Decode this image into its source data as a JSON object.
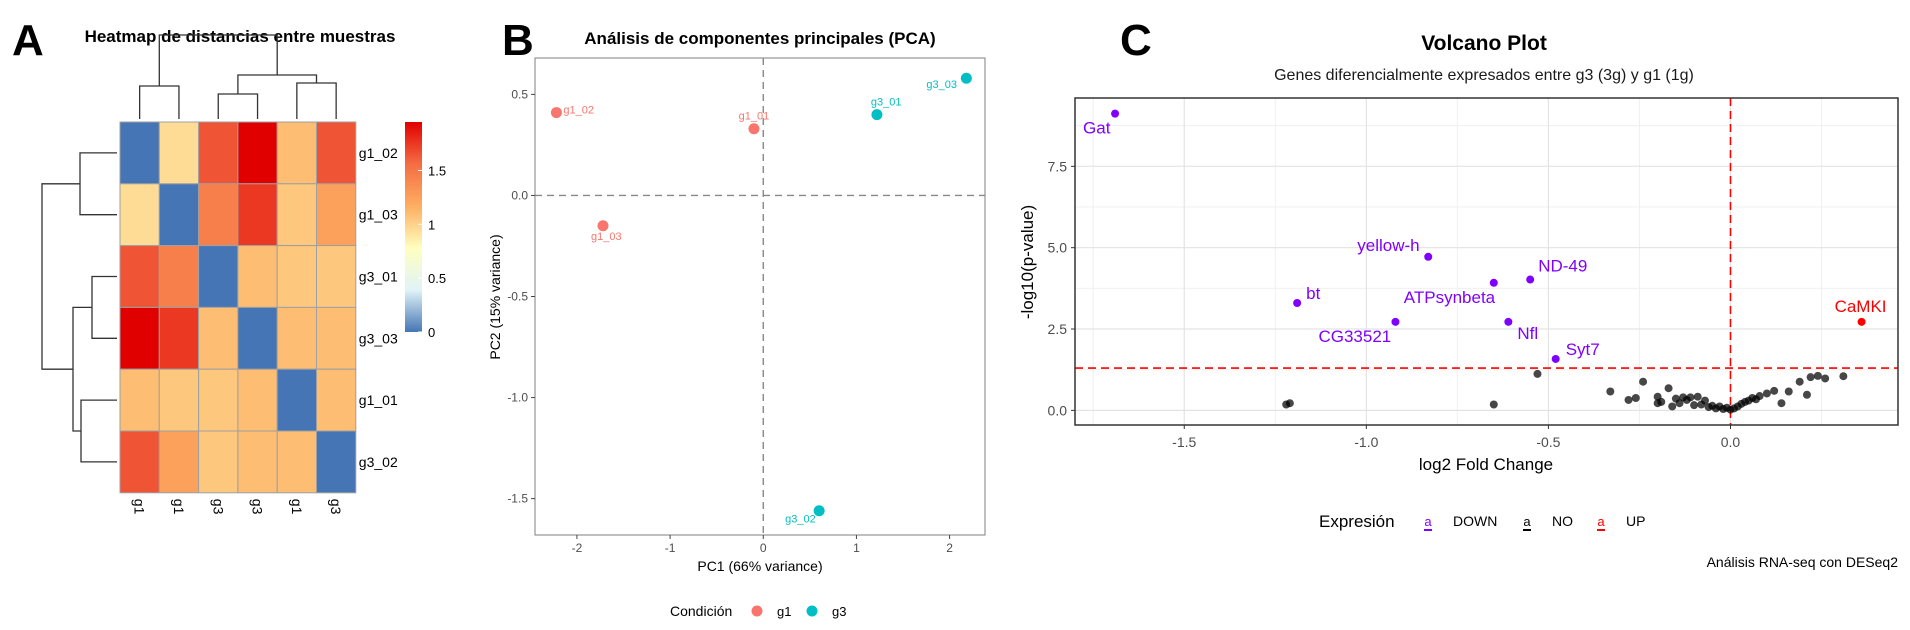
{
  "panel_letters": [
    "A",
    "B",
    "C"
  ],
  "chart_data": [
    {
      "type": "heatmap",
      "title": "Heatmap de distancias entre muestras",
      "row_labels": [
        "g1_02",
        "g1_03",
        "g3_01",
        "g3_03",
        "g1_01",
        "g3_02"
      ],
      "col_labels": [
        "g1",
        "g1",
        "g3",
        "g3",
        "g1",
        "g3"
      ],
      "values": [
        [
          0.0,
          0.95,
          1.65,
          1.95,
          1.1,
          1.65
        ],
        [
          0.95,
          0.0,
          1.45,
          1.75,
          1.05,
          1.25
        ],
        [
          1.65,
          1.45,
          0.0,
          1.1,
          1.05,
          1.05
        ],
        [
          1.95,
          1.75,
          1.1,
          0.0,
          1.1,
          1.1
        ],
        [
          1.1,
          1.05,
          1.05,
          1.1,
          0.0,
          1.1
        ],
        [
          1.65,
          1.25,
          1.05,
          1.1,
          1.1,
          0.0
        ]
      ],
      "color_scale": {
        "min": 0,
        "max": 1.95,
        "stops": [
          "#4575b4",
          "#e0f3f8",
          "#ffffbf",
          "#fdae61",
          "#f46d43",
          "#e00000"
        ],
        "ticks": [
          0,
          0.5,
          1,
          1.5
        ],
        "tick_labels": [
          "0",
          "0.5",
          "1",
          "1.5"
        ]
      },
      "legend_position": "right"
    },
    {
      "type": "scatter",
      "title": "Análisis de componentes principales (PCA)",
      "xlabel": "PC1 (66% variance)",
      "ylabel": "PC2 (15% variance)",
      "xlim": [
        -2.45,
        2.38
      ],
      "ylim": [
        -1.68,
        0.68
      ],
      "xticks": [
        -2,
        -1,
        0,
        1,
        2
      ],
      "yticks": [
        -1.5,
        -1.0,
        -0.5,
        0.0,
        0.5
      ],
      "ytick_labels": [
        "-1.5",
        "-1.0",
        "-0.5",
        "0.0",
        "0.5"
      ],
      "grid": false,
      "reference_lines": {
        "x": 0,
        "y": 0
      },
      "legend_title": "Condición",
      "legend_position": "bottom",
      "series": [
        {
          "name": "g1",
          "color": "#f8766d",
          "points": [
            {
              "label": "g1_02",
              "x": -2.22,
              "y": 0.41
            },
            {
              "label": "g1_01",
              "x": -0.1,
              "y": 0.33
            },
            {
              "label": "g1_03",
              "x": -1.72,
              "y": -0.15
            }
          ]
        },
        {
          "name": "g3",
          "color": "#00bfc4",
          "points": [
            {
              "label": "g3_01",
              "x": 1.22,
              "y": 0.4
            },
            {
              "label": "g3_03",
              "x": 2.18,
              "y": 0.58
            },
            {
              "label": "g3_02",
              "x": 0.6,
              "y": -1.56
            }
          ]
        }
      ]
    },
    {
      "type": "scatter",
      "title": "Volcano Plot",
      "subtitle": "Genes diferencialmente expresados entre g3 (3g) y g1 (1g)",
      "xlabel": "log2 Fold Change",
      "ylabel": "-log10(p-value)",
      "xlim": [
        -1.8,
        0.46
      ],
      "ylim": [
        -0.45,
        9.6
      ],
      "xticks": [
        -1.5,
        -1.0,
        -0.5,
        0.0
      ],
      "xtick_labels": [
        "-1.5",
        "-1.0",
        "-0.5",
        "0.0"
      ],
      "yticks": [
        0.0,
        2.5,
        5.0,
        7.5
      ],
      "ytick_labels": [
        "0.0",
        "2.5",
        "5.0",
        "7.5"
      ],
      "grid": true,
      "reference_lines": {
        "x": 0,
        "y": 1.3
      },
      "legend_title": "Expresión",
      "legend_position": "bottom",
      "caption": "Análisis RNA-seq con DESeq2",
      "colors": {
        "DOWN": "#7f00ff",
        "NO": "#000000",
        "UP": "#ff0000"
      },
      "series": [
        {
          "name": "DOWN",
          "color": "#7f00ff",
          "points": [
            {
              "label": "Gat",
              "x": -1.69,
              "y": 9.12
            },
            {
              "label": "yellow-h",
              "x": -0.83,
              "y": 4.72
            },
            {
              "label": "ND-49",
              "x": -0.55,
              "y": 4.02
            },
            {
              "label": "ATPsynbeta",
              "x": -0.65,
              "y": 3.92
            },
            {
              "label": "bt",
              "x": -1.19,
              "y": 3.3
            },
            {
              "label": "CG33521",
              "x": -0.92,
              "y": 2.72
            },
            {
              "label": "Nfl",
              "x": -0.61,
              "y": 2.72
            },
            {
              "label": "Syt7",
              "x": -0.48,
              "y": 1.58
            }
          ]
        },
        {
          "name": "UP",
          "color": "#ff0000",
          "points": [
            {
              "label": "CaMKI",
              "x": 0.36,
              "y": 2.72
            }
          ]
        },
        {
          "name": "NO",
          "color": "#000000",
          "points": [
            {
              "x": -1.22,
              "y": 0.18
            },
            {
              "x": -1.21,
              "y": 0.22
            },
            {
              "x": -0.65,
              "y": 0.18
            },
            {
              "x": -0.53,
              "y": 1.12
            },
            {
              "x": -0.33,
              "y": 0.58
            },
            {
              "x": -0.28,
              "y": 0.32
            },
            {
              "x": -0.26,
              "y": 0.38
            },
            {
              "x": -0.24,
              "y": 0.88
            },
            {
              "x": -0.2,
              "y": 0.22
            },
            {
              "x": -0.2,
              "y": 0.42
            },
            {
              "x": -0.19,
              "y": 0.26
            },
            {
              "x": -0.17,
              "y": 0.68
            },
            {
              "x": -0.16,
              "y": 0.12
            },
            {
              "x": -0.15,
              "y": 0.36
            },
            {
              "x": -0.14,
              "y": 0.22
            },
            {
              "x": -0.13,
              "y": 0.4
            },
            {
              "x": -0.12,
              "y": 0.32
            },
            {
              "x": -0.11,
              "y": 0.4
            },
            {
              "x": -0.1,
              "y": 0.16
            },
            {
              "x": -0.09,
              "y": 0.42
            },
            {
              "x": -0.08,
              "y": 0.18
            },
            {
              "x": -0.07,
              "y": 0.3
            },
            {
              "x": -0.06,
              "y": 0.1
            },
            {
              "x": -0.05,
              "y": 0.14
            },
            {
              "x": -0.04,
              "y": 0.06
            },
            {
              "x": -0.03,
              "y": 0.12
            },
            {
              "x": -0.02,
              "y": 0.04
            },
            {
              "x": -0.01,
              "y": 0.08
            },
            {
              "x": 0.0,
              "y": 0.02
            },
            {
              "x": 0.01,
              "y": 0.06
            },
            {
              "x": 0.02,
              "y": 0.12
            },
            {
              "x": 0.03,
              "y": 0.2
            },
            {
              "x": 0.04,
              "y": 0.26
            },
            {
              "x": 0.05,
              "y": 0.3
            },
            {
              "x": 0.06,
              "y": 0.38
            },
            {
              "x": 0.07,
              "y": 0.34
            },
            {
              "x": 0.08,
              "y": 0.44
            },
            {
              "x": 0.1,
              "y": 0.52
            },
            {
              "x": 0.12,
              "y": 0.6
            },
            {
              "x": 0.14,
              "y": 0.22
            },
            {
              "x": 0.16,
              "y": 0.58
            },
            {
              "x": 0.19,
              "y": 0.88
            },
            {
              "x": 0.21,
              "y": 0.48
            },
            {
              "x": 0.22,
              "y": 1.02
            },
            {
              "x": 0.24,
              "y": 1.06
            },
            {
              "x": 0.26,
              "y": 0.98
            },
            {
              "x": 0.31,
              "y": 1.05
            }
          ]
        }
      ]
    }
  ]
}
